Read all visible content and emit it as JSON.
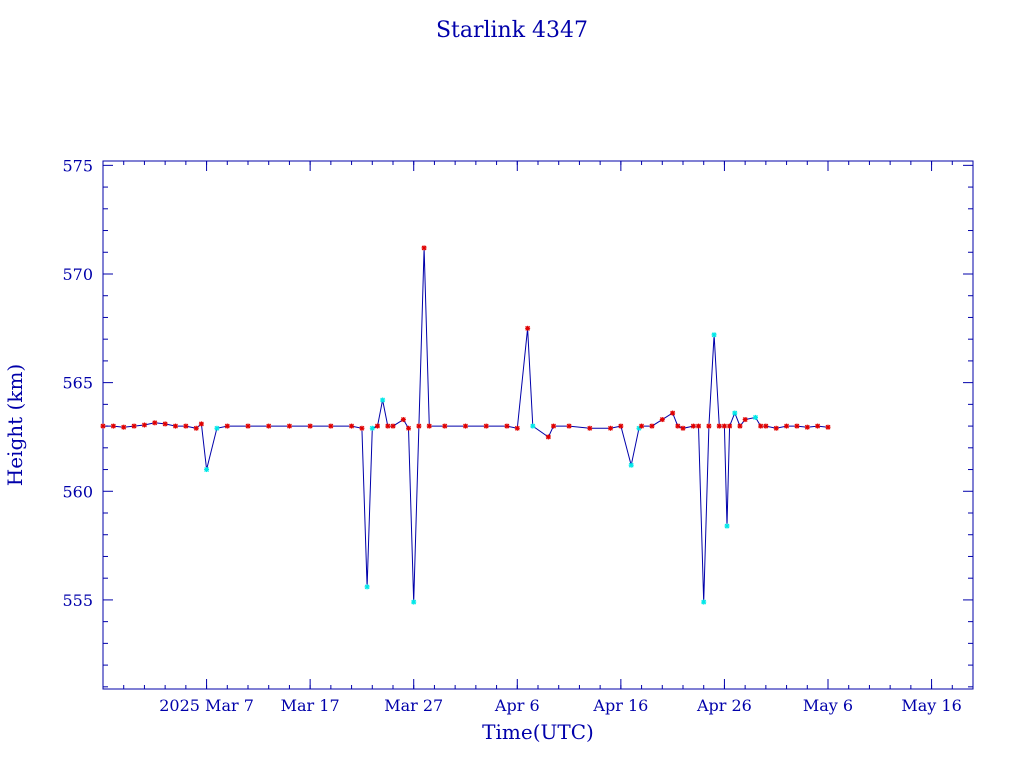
{
  "chart_data": {
    "type": "line",
    "title": "Starlink 4347",
    "xlabel": "Time(UTC)",
    "ylabel": "Height (km)",
    "x_ticks": [
      "2025 Mar  7",
      "Mar 17",
      "Mar 27",
      "Apr  6",
      "Apr 16",
      "Apr 26",
      "May  6",
      "May 16"
    ],
    "x_tick_dates": [
      "2025-03-07",
      "2025-03-17",
      "2025-03-27",
      "2025-04-06",
      "2025-04-16",
      "2025-04-26",
      "2025-05-06",
      "2025-05-16"
    ],
    "xlim": [
      "2025-02-25",
      "2025-05-20"
    ],
    "y_ticks": [
      555,
      560,
      565,
      570,
      575
    ],
    "ylim": [
      550.9,
      575.2
    ],
    "grid": false,
    "legend": "none",
    "colors": {
      "axis": "#0000aa",
      "line": "#0000aa",
      "marker_red": "#e00000",
      "marker_cyan": "#00e8e8"
    },
    "series": [
      {
        "values": [
          {
            "x": "2025-02-25",
            "y": 563.0,
            "m": "red"
          },
          {
            "x": "2025-02-26",
            "y": 563.0,
            "m": "red"
          },
          {
            "x": "2025-02-27",
            "y": 562.95,
            "m": "red"
          },
          {
            "x": "2025-02-28",
            "y": 563.0,
            "m": "red"
          },
          {
            "x": "2025-03-01",
            "y": 563.05,
            "m": "red"
          },
          {
            "x": "2025-03-02",
            "y": 563.15,
            "m": "red"
          },
          {
            "x": "2025-03-03",
            "y": 563.1,
            "m": "red"
          },
          {
            "x": "2025-03-04",
            "y": 563.0,
            "m": "red"
          },
          {
            "x": "2025-03-05",
            "y": 563.0,
            "m": "red"
          },
          {
            "x": "2025-03-06",
            "y": 562.9,
            "m": "red"
          },
          {
            "x": "2025-03-06T12:00",
            "y": 563.1,
            "m": "red"
          },
          {
            "x": "2025-03-07",
            "y": 561.0,
            "m": "cyan"
          },
          {
            "x": "2025-03-08",
            "y": 562.9,
            "m": "cyan"
          },
          {
            "x": "2025-03-09",
            "y": 563.0,
            "m": "red"
          },
          {
            "x": "2025-03-11",
            "y": 563.0,
            "m": "red"
          },
          {
            "x": "2025-03-13",
            "y": 563.0,
            "m": "red"
          },
          {
            "x": "2025-03-15",
            "y": 563.0,
            "m": "red"
          },
          {
            "x": "2025-03-17",
            "y": 563.0,
            "m": "red"
          },
          {
            "x": "2025-03-19",
            "y": 563.0,
            "m": "red"
          },
          {
            "x": "2025-03-21",
            "y": 563.0,
            "m": "red"
          },
          {
            "x": "2025-03-22",
            "y": 562.9,
            "m": "red"
          },
          {
            "x": "2025-03-22T12:00",
            "y": 555.6,
            "m": "cyan"
          },
          {
            "x": "2025-03-23",
            "y": 562.9,
            "m": "cyan"
          },
          {
            "x": "2025-03-23T12:00",
            "y": 563.0,
            "m": "red"
          },
          {
            "x": "2025-03-24",
            "y": 564.2,
            "m": "cyan"
          },
          {
            "x": "2025-03-24T12:00",
            "y": 563.0,
            "m": "red"
          },
          {
            "x": "2025-03-25",
            "y": 563.0,
            "m": "red"
          },
          {
            "x": "2025-03-26",
            "y": 563.3,
            "m": "red"
          },
          {
            "x": "2025-03-26T12:00",
            "y": 562.9,
            "m": "red"
          },
          {
            "x": "2025-03-27",
            "y": 554.9,
            "m": "cyan"
          },
          {
            "x": "2025-03-27T12:00",
            "y": 563.0,
            "m": "red"
          },
          {
            "x": "2025-03-28",
            "y": 571.2,
            "m": "red"
          },
          {
            "x": "2025-03-28T12:00",
            "y": 563.0,
            "m": "red"
          },
          {
            "x": "2025-03-30",
            "y": 563.0,
            "m": "red"
          },
          {
            "x": "2025-04-01",
            "y": 563.0,
            "m": "red"
          },
          {
            "x": "2025-04-03",
            "y": 563.0,
            "m": "red"
          },
          {
            "x": "2025-04-05",
            "y": 563.0,
            "m": "red"
          },
          {
            "x": "2025-04-06",
            "y": 562.9,
            "m": "red"
          },
          {
            "x": "2025-04-07",
            "y": 567.5,
            "m": "red"
          },
          {
            "x": "2025-04-07T12:00",
            "y": 563.0,
            "m": "cyan"
          },
          {
            "x": "2025-04-09",
            "y": 562.5,
            "m": "red"
          },
          {
            "x": "2025-04-09T12:00",
            "y": 563.0,
            "m": "red"
          },
          {
            "x": "2025-04-11",
            "y": 563.0,
            "m": "red"
          },
          {
            "x": "2025-04-13",
            "y": 562.9,
            "m": "red"
          },
          {
            "x": "2025-04-15",
            "y": 562.9,
            "m": "red"
          },
          {
            "x": "2025-04-16",
            "y": 563.0,
            "m": "red"
          },
          {
            "x": "2025-04-17",
            "y": 561.2,
            "m": "cyan"
          },
          {
            "x": "2025-04-17T18:00",
            "y": 562.9,
            "m": "cyan"
          },
          {
            "x": "2025-04-18",
            "y": 563.0,
            "m": "red"
          },
          {
            "x": "2025-04-19",
            "y": 563.0,
            "m": "red"
          },
          {
            "x": "2025-04-20",
            "y": 563.3,
            "m": "red"
          },
          {
            "x": "2025-04-21",
            "y": 563.6,
            "m": "red"
          },
          {
            "x": "2025-04-21T12:00",
            "y": 563.0,
            "m": "red"
          },
          {
            "x": "2025-04-22",
            "y": 562.9,
            "m": "red"
          },
          {
            "x": "2025-04-23",
            "y": 563.0,
            "m": "red"
          },
          {
            "x": "2025-04-23T12:00",
            "y": 563.0,
            "m": "red"
          },
          {
            "x": "2025-04-24",
            "y": 554.9,
            "m": "cyan"
          },
          {
            "x": "2025-04-24T12:00",
            "y": 563.0,
            "m": "red"
          },
          {
            "x": "2025-04-25",
            "y": 567.2,
            "m": "cyan"
          },
          {
            "x": "2025-04-25T12:00",
            "y": 563.0,
            "m": "red"
          },
          {
            "x": "2025-04-26",
            "y": 563.0,
            "m": "red"
          },
          {
            "x": "2025-04-26T06:00",
            "y": 558.4,
            "m": "cyan"
          },
          {
            "x": "2025-04-26T12:00",
            "y": 563.0,
            "m": "red"
          },
          {
            "x": "2025-04-27",
            "y": 563.6,
            "m": "cyan"
          },
          {
            "x": "2025-04-27T12:00",
            "y": 563.0,
            "m": "red"
          },
          {
            "x": "2025-04-28",
            "y": 563.3,
            "m": "red"
          },
          {
            "x": "2025-04-29",
            "y": 563.4,
            "m": "cyan"
          },
          {
            "x": "2025-04-29T12:00",
            "y": 563.0,
            "m": "red"
          },
          {
            "x": "2025-04-30",
            "y": 563.0,
            "m": "red"
          },
          {
            "x": "2025-05-01",
            "y": 562.9,
            "m": "red"
          },
          {
            "x": "2025-05-02",
            "y": 563.0,
            "m": "red"
          },
          {
            "x": "2025-05-03",
            "y": 563.0,
            "m": "red"
          },
          {
            "x": "2025-05-04",
            "y": 562.95,
            "m": "red"
          },
          {
            "x": "2025-05-05",
            "y": 563.0,
            "m": "red"
          },
          {
            "x": "2025-05-06",
            "y": 562.95,
            "m": "red"
          }
        ]
      }
    ]
  }
}
